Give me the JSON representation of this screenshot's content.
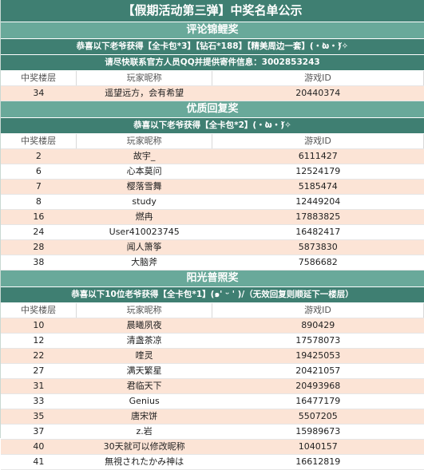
{
  "title": "【假期活动第三弹】中奖名单公示",
  "columns": {
    "floor": "中奖楼层",
    "nickname": "玩家昵称",
    "game_id": "游戏ID"
  },
  "section1": {
    "title": "评论锦鲤奖",
    "prize": "恭喜以下老爷获得【全卡包*3】【钻石*188】【精美周边一套】(・̀ω・́)✧",
    "contact": "请尽快联系官方人员QQ并提供寄件信息：3002853243",
    "rows": [
      {
        "floor": "34",
        "nickname": "遥望远方，会有希望",
        "game_id": "20440374"
      }
    ]
  },
  "section2": {
    "title": "优质回复奖",
    "prize": "恭喜以下老爷获得【全卡包*2】(・̀ω・́)✧",
    "rows": [
      {
        "floor": "2",
        "nickname": "故宇_",
        "game_id": "6111427"
      },
      {
        "floor": "6",
        "nickname": "心本莫问",
        "game_id": "12524179"
      },
      {
        "floor": "7",
        "nickname": "樱落雪舞",
        "game_id": "5185474"
      },
      {
        "floor": "8",
        "nickname": "study",
        "game_id": "12449204"
      },
      {
        "floor": "16",
        "nickname": "燃冉",
        "game_id": "17883825"
      },
      {
        "floor": "24",
        "nickname": "User410023745",
        "game_id": "16482417"
      },
      {
        "floor": "28",
        "nickname": "闻人箫筝",
        "game_id": "5873830"
      },
      {
        "floor": "38",
        "nickname": "大脑斧",
        "game_id": "7586682"
      }
    ]
  },
  "section3": {
    "title": "阳光普照奖",
    "prize": "恭喜以下10位老爷获得【全卡包*1】(๑' ᵕ ' )/（无效回复则顺延下一楼层）",
    "rows": [
      {
        "floor": "10",
        "nickname": "晨曦夙夜",
        "game_id": "890429"
      },
      {
        "floor": "12",
        "nickname": "清盏茶凉",
        "game_id": "17578073"
      },
      {
        "floor": "22",
        "nickname": "喹灵",
        "game_id": "19425053"
      },
      {
        "floor": "27",
        "nickname": "满天繁星",
        "game_id": "20421057"
      },
      {
        "floor": "31",
        "nickname": "君临天下",
        "game_id": "20493968"
      },
      {
        "floor": "33",
        "nickname": "Genius",
        "game_id": "16477179"
      },
      {
        "floor": "35",
        "nickname": "唐宋饼",
        "game_id": "5507205"
      },
      {
        "floor": "37",
        "nickname": "z.岩",
        "game_id": "15989673"
      },
      {
        "floor": "40",
        "nickname": "30天就可以修改昵称",
        "game_id": "1040157"
      },
      {
        "floor": "41",
        "nickname": "無視されたかみ神は",
        "game_id": "16612819"
      }
    ]
  },
  "colors": {
    "title_bg": "#3f7f72",
    "section_bg": "#69a99a",
    "row_alt": "#fce4d6"
  }
}
